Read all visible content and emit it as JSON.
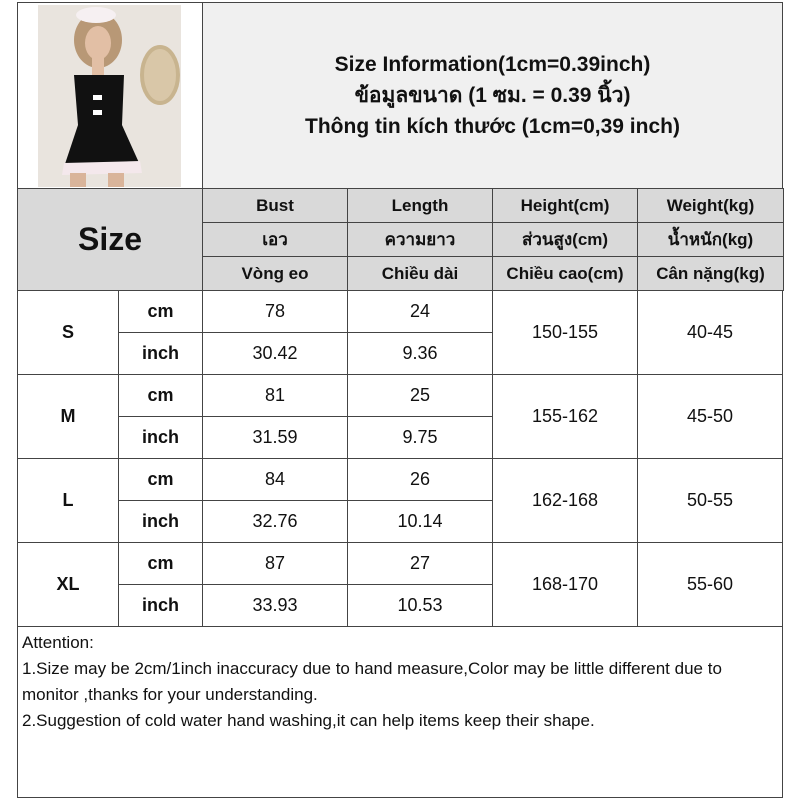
{
  "title": {
    "line1": "Size Information(1cm=0.39inch)",
    "line2": "ข้อมูลขนาด (1 ซม. = 0.39 นิ้ว)",
    "line3": "Thông tin kích thước (1cm=0,39 inch)"
  },
  "size_label": "Size",
  "headers": [
    {
      "en": "Bust",
      "th": "เอว",
      "vi": "Vòng eo"
    },
    {
      "en": "Length",
      "th": "ความยาว",
      "vi": "Chiều dài"
    },
    {
      "en": "Height(cm)",
      "th": "ส่วนสูง(cm)",
      "vi": "Chiều cao(cm)"
    },
    {
      "en": "Weight(kg)",
      "th": "น้ำหนัก(kg)",
      "vi": "Cân nặng(kg)"
    }
  ],
  "rows": [
    {
      "size": "S",
      "cm_label": "cm",
      "inch_label": "inch",
      "bust_cm": "78",
      "length_cm": "24",
      "bust_in": "30.42",
      "length_in": "9.36",
      "height": "150-155",
      "weight": "40-45"
    },
    {
      "size": "M",
      "cm_label": "cm",
      "inch_label": "inch",
      "bust_cm": "81",
      "length_cm": "25",
      "bust_in": "31.59",
      "length_in": "9.75",
      "height": "155-162",
      "weight": "45-50"
    },
    {
      "size": "L",
      "cm_label": "cm",
      "inch_label": "inch",
      "bust_cm": "84",
      "length_cm": "26",
      "bust_in": "32.76",
      "length_in": "10.14",
      "height": "162-168",
      "weight": "50-55"
    },
    {
      "size": "XL",
      "cm_label": "cm",
      "inch_label": "inch",
      "bust_cm": "87",
      "length_cm": "27",
      "bust_in": "33.93",
      "length_in": "10.53",
      "height": "168-170",
      "weight": "55-60"
    }
  ],
  "notes": {
    "heading": "Attention:",
    "line1": "1.Size may be 2cm/1inch inaccuracy due to hand measure,Color may be little different due to monitor ,thanks for your understanding.",
    "line2": "2.Suggestion of cold water hand washing,it can help items keep their shape."
  }
}
